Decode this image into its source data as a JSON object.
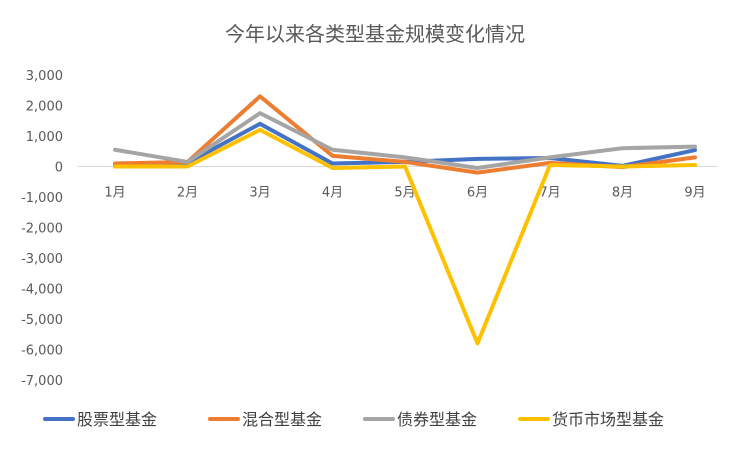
{
  "chart_data": {
    "type": "line",
    "title": "今年以来各类型基金规模变化情况",
    "xlabel": "",
    "ylabel": "",
    "categories": [
      "1月",
      "2月",
      "3月",
      "4月",
      "5月",
      "6月",
      "7月",
      "8月",
      "9月"
    ],
    "ylim": [
      -7000,
      3000
    ],
    "yticks": [
      3000,
      2000,
      1000,
      0,
      -1000,
      -2000,
      -3000,
      -4000,
      -5000,
      -6000,
      -7000
    ],
    "ytick_labels": [
      "3,000",
      "2,000",
      "1,000",
      "0",
      "-1,000",
      "-2,000",
      "-3,000",
      "-4,000",
      "-5,000",
      "-6,000",
      "-7,000"
    ],
    "grid": false,
    "legend_position": "bottom",
    "series": [
      {
        "name": "股票型基金",
        "color": "#4472C4",
        "values": [
          50,
          120,
          1400,
          100,
          150,
          250,
          280,
          20,
          540
        ]
      },
      {
        "name": "混合型基金",
        "color": "#ED7D31",
        "values": [
          100,
          150,
          2300,
          350,
          150,
          -200,
          120,
          -20,
          300
        ]
      },
      {
        "name": "债券型基金",
        "color": "#A5A5A5",
        "values": [
          550,
          150,
          1750,
          550,
          300,
          -50,
          300,
          600,
          650
        ]
      },
      {
        "name": "货币市场型基金",
        "color": "#FFC000",
        "values": [
          0,
          0,
          1200,
          -50,
          0,
          -5800,
          50,
          0,
          50
        ]
      }
    ]
  }
}
